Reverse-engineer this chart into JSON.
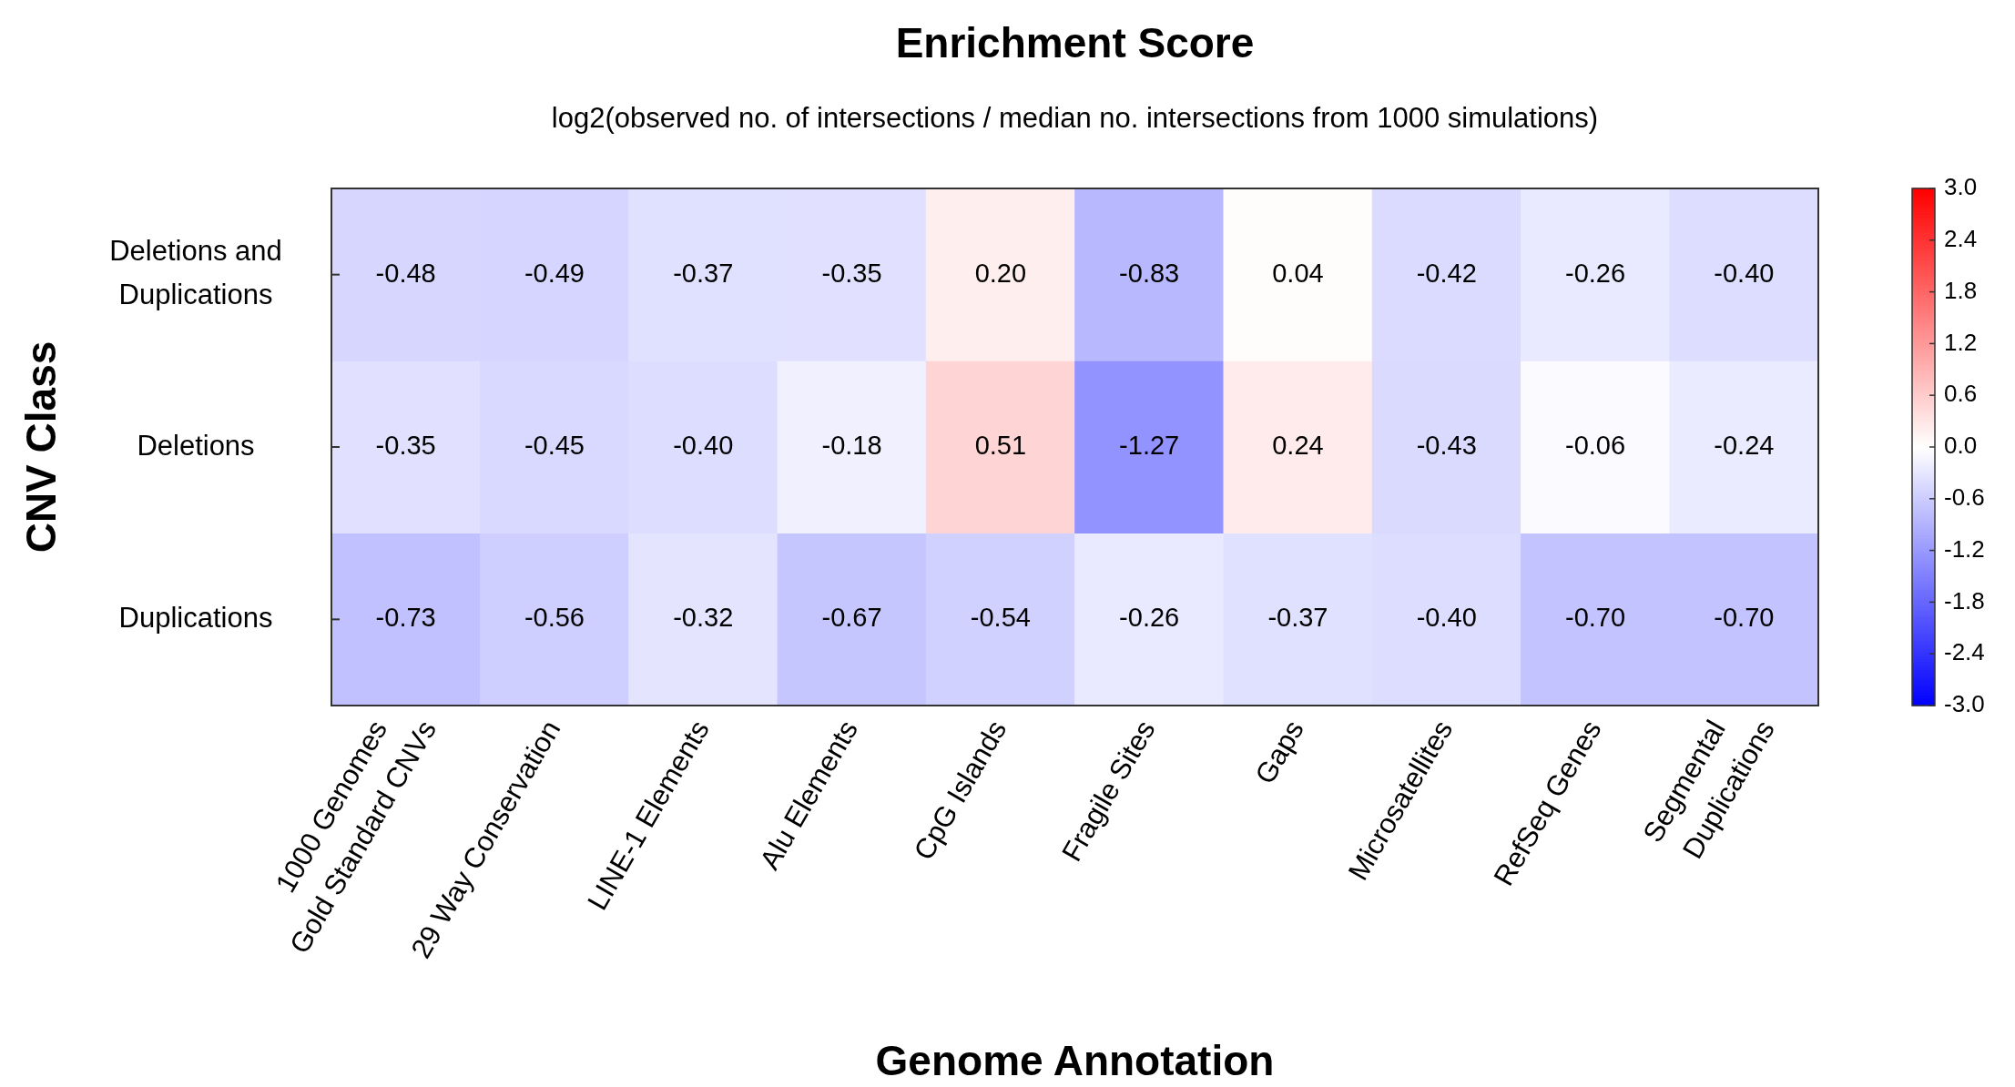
{
  "chart_data": {
    "type": "heatmap",
    "title": "Enrichment Score",
    "subtitle": "log2(observed no. of intersections / median no. intersections from 1000 simulations)",
    "xlabel": "Genome Annotation",
    "ylabel": "CNV Class",
    "categories": [
      "1000 Genomes\nGold Standard CNVs",
      "29 Way Conservation",
      "LINE-1 Elements",
      "Alu Elements",
      "CpG Islands",
      "Fragile Sites",
      "Gaps",
      "Microsatellites",
      "RefSeq Genes",
      "Segmental\nDuplications"
    ],
    "y_categories": [
      "Deletions and\nDuplications",
      "Deletions",
      "Duplications"
    ],
    "cells": [
      [
        -0.48,
        -0.49,
        -0.37,
        -0.35,
        0.2,
        -0.83,
        0.04,
        -0.42,
        -0.26,
        -0.4
      ],
      [
        -0.35,
        -0.45,
        -0.4,
        -0.18,
        0.51,
        -1.27,
        0.24,
        -0.43,
        -0.06,
        -0.24
      ],
      [
        -0.73,
        -0.56,
        -0.32,
        -0.67,
        -0.54,
        -0.26,
        -0.37,
        -0.4,
        -0.7,
        -0.7
      ]
    ],
    "cell_labels": [
      [
        "-0.48",
        "-0.49",
        "-0.37",
        "-0.35",
        "0.20",
        "-0.83",
        "0.04",
        "-0.42",
        "-0.26",
        "-0.40"
      ],
      [
        "-0.35",
        "-0.45",
        "-0.40",
        "-0.18",
        "0.51",
        "-1.27",
        "0.24",
        "-0.43",
        "-0.06",
        "-0.24"
      ],
      [
        "-0.73",
        "-0.56",
        "-0.32",
        "-0.67",
        "-0.54",
        "-0.26",
        "-0.37",
        "-0.40",
        "-0.70",
        "-0.70"
      ]
    ],
    "clim": [
      -3,
      3
    ],
    "cticks": [
      {
        "value": 3,
        "label": "3.0"
      },
      {
        "value": 2.4,
        "label": "2.4"
      },
      {
        "value": 1.8,
        "label": "1.8"
      },
      {
        "value": 1.2,
        "label": "1.2"
      },
      {
        "value": 0.6,
        "label": "0.6"
      },
      {
        "value": 0,
        "label": "0.0"
      },
      {
        "value": -0.6,
        "label": "-0.6"
      },
      {
        "value": -1.2,
        "label": "-1.2"
      },
      {
        "value": -1.8,
        "label": "-1.8"
      },
      {
        "value": -2.4,
        "label": "-2.4"
      },
      {
        "value": -3,
        "label": "-3.0"
      }
    ]
  }
}
